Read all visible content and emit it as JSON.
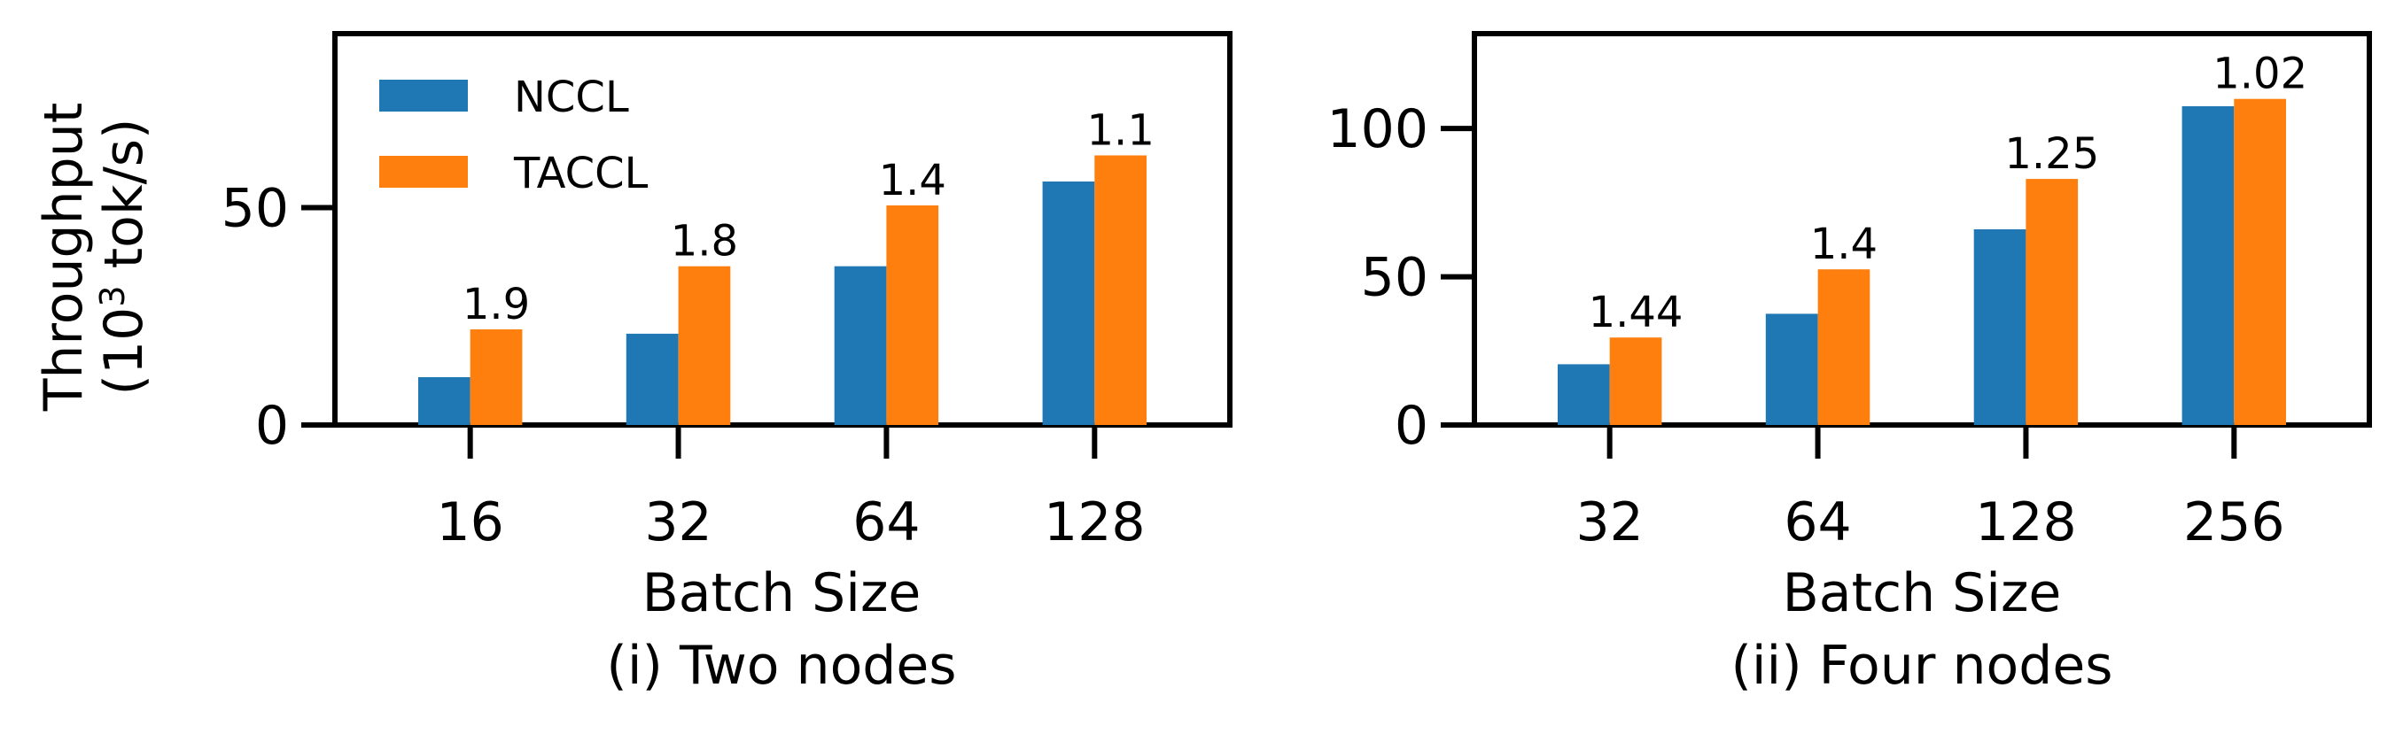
{
  "chart_data": [
    {
      "type": "bar",
      "panel": "left",
      "categories": [
        "16",
        "32",
        "64",
        "128"
      ],
      "series": [
        {
          "name": "NCCL",
          "values": [
            11,
            21,
            36.5,
            56
          ]
        },
        {
          "name": "TACCL",
          "values": [
            22,
            36.5,
            50.5,
            62
          ]
        }
      ],
      "bar_labels": [
        "1.9",
        "1.8",
        "1.4",
        "1.1"
      ],
      "ylim": [
        0,
        90
      ],
      "yticks": [
        0,
        50
      ],
      "xlabel": "Batch Size",
      "ylabel_line1": "Throughput",
      "ylabel_line2": "(10",
      "ylabel_sup": "3",
      "ylabel_line2_rest": " tok/s)",
      "caption": "(i) Two nodes",
      "legend": "top-left",
      "grid": false
    },
    {
      "type": "bar",
      "panel": "right",
      "categories": [
        "32",
        "64",
        "128",
        "256"
      ],
      "series": [
        {
          "name": "NCCL",
          "values": [
            20.5,
            37.5,
            66,
            107.5
          ]
        },
        {
          "name": "TACCL",
          "values": [
            29.5,
            52.5,
            83,
            110
          ]
        }
      ],
      "bar_labels": [
        "1.44",
        "1.4",
        "1.25",
        "1.02"
      ],
      "ylim": [
        0,
        132
      ],
      "yticks": [
        0,
        50,
        100
      ],
      "xlabel": "Batch Size",
      "caption": "(ii) Four nodes",
      "grid": false
    }
  ],
  "colors": {
    "NCCL": "#1f77b4",
    "TACCL": "#ff7f0e"
  }
}
